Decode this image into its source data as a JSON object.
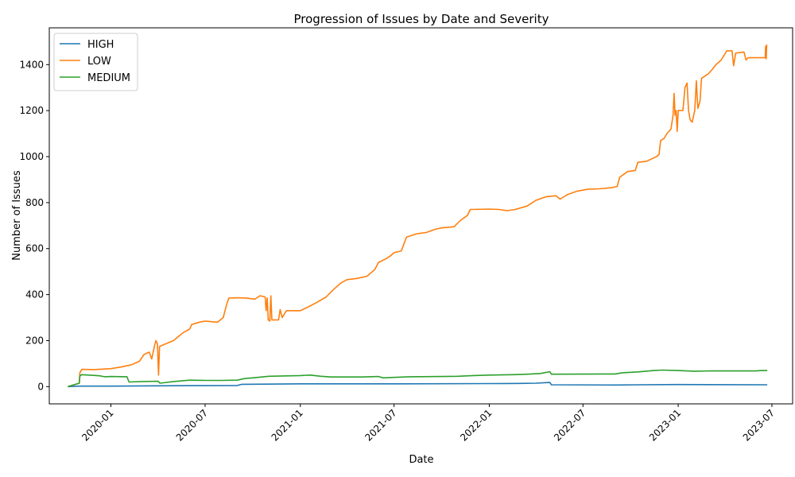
{
  "chart_data": {
    "type": "line",
    "title": "Progression of Issues by Date and Severity",
    "xlabel": "Date",
    "ylabel": "Number of Issues",
    "xlim": [
      "2019-09-04",
      "2023-08-10"
    ],
    "ylim": [
      -75,
      1560
    ],
    "x_ticks": [
      "2020-01-01",
      "2020-07-01",
      "2021-01-01",
      "2021-07-01",
      "2022-01-01",
      "2022-07-01",
      "2023-01-01",
      "2023-07-01"
    ],
    "x_tick_labels": [
      "2020-01",
      "2020-07",
      "2021-01",
      "2021-07",
      "2022-01",
      "2022-07",
      "2023-01",
      "2023-07"
    ],
    "y_ticks": [
      0,
      200,
      400,
      600,
      800,
      1000,
      1200,
      1400
    ],
    "y_tick_labels": [
      "0",
      "200",
      "400",
      "600",
      "800",
      "1000",
      "1200",
      "1400"
    ],
    "legend_position": "top-left",
    "grid": false,
    "series": [
      {
        "name": "HIGH",
        "color": "#1f77b4",
        "points": [
          [
            "2019-10-10",
            0
          ],
          [
            "2019-11-01",
            2
          ],
          [
            "2020-01-01",
            2
          ],
          [
            "2020-06-01",
            4
          ],
          [
            "2020-09-01",
            5
          ],
          [
            "2020-09-10",
            10
          ],
          [
            "2021-01-01",
            12
          ],
          [
            "2021-07-01",
            12
          ],
          [
            "2022-01-01",
            13
          ],
          [
            "2022-03-01",
            14
          ],
          [
            "2022-04-01",
            15
          ],
          [
            "2022-04-28",
            18
          ],
          [
            "2022-05-01",
            8
          ],
          [
            "2022-09-01",
            7
          ],
          [
            "2022-10-15",
            8
          ],
          [
            "2023-01-01",
            9
          ],
          [
            "2023-06-22",
            8
          ]
        ]
      },
      {
        "name": "LOW",
        "color": "#ff7f0e",
        "points": [
          [
            "2019-10-10",
            0
          ],
          [
            "2019-11-01",
            15
          ],
          [
            "2019-11-02",
            60
          ],
          [
            "2019-11-06",
            75
          ],
          [
            "2019-11-30",
            74
          ],
          [
            "2020-01-01",
            78
          ],
          [
            "2020-01-20",
            85
          ],
          [
            "2020-02-10",
            95
          ],
          [
            "2020-02-25",
            110
          ],
          [
            "2020-03-05",
            140
          ],
          [
            "2020-03-15",
            150
          ],
          [
            "2020-03-20",
            120
          ],
          [
            "2020-03-25",
            175
          ],
          [
            "2020-03-28",
            200
          ],
          [
            "2020-03-31",
            185
          ],
          [
            "2020-04-02",
            50
          ],
          [
            "2020-04-04",
            175
          ],
          [
            "2020-04-15",
            185
          ],
          [
            "2020-05-01",
            200
          ],
          [
            "2020-05-20",
            235
          ],
          [
            "2020-06-01",
            250
          ],
          [
            "2020-06-05",
            270
          ],
          [
            "2020-06-20",
            280
          ],
          [
            "2020-07-01",
            285
          ],
          [
            "2020-07-10",
            283
          ],
          [
            "2020-07-25",
            280
          ],
          [
            "2020-08-05",
            300
          ],
          [
            "2020-08-12",
            360
          ],
          [
            "2020-08-16",
            385
          ],
          [
            "2020-09-01",
            386
          ],
          [
            "2020-09-20",
            385
          ],
          [
            "2020-10-05",
            380
          ],
          [
            "2020-10-15",
            395
          ],
          [
            "2020-10-25",
            390
          ],
          [
            "2020-10-27",
            330
          ],
          [
            "2020-10-29",
            385
          ],
          [
            "2020-10-31",
            290
          ],
          [
            "2020-11-03",
            285
          ],
          [
            "2020-11-05",
            395
          ],
          [
            "2020-11-07",
            290
          ],
          [
            "2020-11-20",
            290
          ],
          [
            "2020-11-23",
            335
          ],
          [
            "2020-11-27",
            300
          ],
          [
            "2020-12-05",
            330
          ],
          [
            "2021-01-01",
            330
          ],
          [
            "2021-01-15",
            345
          ],
          [
            "2021-02-01",
            365
          ],
          [
            "2021-02-20",
            390
          ],
          [
            "2021-03-05",
            420
          ],
          [
            "2021-03-20",
            450
          ],
          [
            "2021-04-01",
            465
          ],
          [
            "2021-04-20",
            470
          ],
          [
            "2021-05-10",
            480
          ],
          [
            "2021-05-25",
            510
          ],
          [
            "2021-06-01",
            540
          ],
          [
            "2021-06-15",
            555
          ],
          [
            "2021-06-25",
            570
          ],
          [
            "2021-07-01",
            582
          ],
          [
            "2021-07-15",
            590
          ],
          [
            "2021-07-25",
            650
          ],
          [
            "2021-08-15",
            665
          ],
          [
            "2021-09-01",
            670
          ],
          [
            "2021-09-20",
            685
          ],
          [
            "2021-10-01",
            690
          ],
          [
            "2021-10-25",
            695
          ],
          [
            "2021-11-05",
            720
          ],
          [
            "2021-11-20",
            745
          ],
          [
            "2021-11-25",
            770
          ],
          [
            "2022-01-01",
            772
          ],
          [
            "2022-01-20",
            770
          ],
          [
            "2022-02-05",
            765
          ],
          [
            "2022-02-20",
            770
          ],
          [
            "2022-03-15",
            785
          ],
          [
            "2022-04-01",
            810
          ],
          [
            "2022-04-20",
            825
          ],
          [
            "2022-05-10",
            830
          ],
          [
            "2022-05-18",
            815
          ],
          [
            "2022-06-01",
            835
          ],
          [
            "2022-06-20",
            850
          ],
          [
            "2022-07-10",
            858
          ],
          [
            "2022-08-01",
            860
          ],
          [
            "2022-08-25",
            865
          ],
          [
            "2022-09-05",
            870
          ],
          [
            "2022-09-10",
            910
          ],
          [
            "2022-09-25",
            935
          ],
          [
            "2022-10-10",
            940
          ],
          [
            "2022-10-15",
            975
          ],
          [
            "2022-11-01",
            980
          ],
          [
            "2022-11-20",
            1000
          ],
          [
            "2022-11-25",
            1010
          ],
          [
            "2022-11-28",
            1070
          ],
          [
            "2022-12-05",
            1080
          ],
          [
            "2022-12-10",
            1100
          ],
          [
            "2022-12-18",
            1120
          ],
          [
            "2022-12-22",
            1180
          ],
          [
            "2022-12-24",
            1275
          ],
          [
            "2022-12-26",
            1180
          ],
          [
            "2022-12-28",
            1200
          ],
          [
            "2022-12-30",
            1110
          ],
          [
            "2023-01-01",
            1200
          ],
          [
            "2023-01-10",
            1200
          ],
          [
            "2023-01-14",
            1300
          ],
          [
            "2023-01-18",
            1320
          ],
          [
            "2023-01-21",
            1200
          ],
          [
            "2023-01-24",
            1160
          ],
          [
            "2023-01-28",
            1150
          ],
          [
            "2023-02-02",
            1200
          ],
          [
            "2023-02-05",
            1330
          ],
          [
            "2023-02-08",
            1210
          ],
          [
            "2023-02-12",
            1240
          ],
          [
            "2023-02-15",
            1340
          ],
          [
            "2023-02-28",
            1360
          ],
          [
            "2023-03-08",
            1380
          ],
          [
            "2023-03-15",
            1400
          ],
          [
            "2023-03-25",
            1420
          ],
          [
            "2023-04-05",
            1460
          ],
          [
            "2023-04-15",
            1460
          ],
          [
            "2023-04-18",
            1395
          ],
          [
            "2023-04-22",
            1450
          ],
          [
            "2023-05-08",
            1455
          ],
          [
            "2023-05-12",
            1420
          ],
          [
            "2023-05-16",
            1430
          ],
          [
            "2023-06-18",
            1430
          ],
          [
            "2023-06-19",
            1480
          ],
          [
            "2023-06-20",
            1425
          ],
          [
            "2023-06-21",
            1485
          ],
          [
            "2023-06-22",
            1485
          ]
        ]
      },
      {
        "name": "MEDIUM",
        "color": "#2ca02c",
        "points": [
          [
            "2019-10-10",
            0
          ],
          [
            "2019-10-25",
            10
          ],
          [
            "2019-11-01",
            15
          ],
          [
            "2019-11-02",
            45
          ],
          [
            "2019-11-05",
            52
          ],
          [
            "2019-11-20",
            50
          ],
          [
            "2019-12-10",
            47
          ],
          [
            "2019-12-20",
            43
          ],
          [
            "2020-01-01",
            44
          ],
          [
            "2020-02-01",
            43
          ],
          [
            "2020-02-05",
            20
          ],
          [
            "2020-03-01",
            22
          ],
          [
            "2020-04-01",
            23
          ],
          [
            "2020-04-05",
            15
          ],
          [
            "2020-05-01",
            22
          ],
          [
            "2020-06-01",
            28
          ],
          [
            "2020-07-01",
            27
          ],
          [
            "2020-08-01",
            27
          ],
          [
            "2020-09-01",
            28
          ],
          [
            "2020-09-15",
            35
          ],
          [
            "2020-10-01",
            38
          ],
          [
            "2020-11-01",
            45
          ],
          [
            "2021-01-01",
            48
          ],
          [
            "2021-01-20",
            50
          ],
          [
            "2021-02-10",
            45
          ],
          [
            "2021-03-01",
            42
          ],
          [
            "2021-05-01",
            42
          ],
          [
            "2021-06-01",
            44
          ],
          [
            "2021-06-10",
            38
          ],
          [
            "2021-07-01",
            40
          ],
          [
            "2021-08-01",
            43
          ],
          [
            "2021-10-01",
            44
          ],
          [
            "2021-11-01",
            45
          ],
          [
            "2021-12-01",
            48
          ],
          [
            "2022-01-01",
            50
          ],
          [
            "2022-02-15",
            52
          ],
          [
            "2022-03-15",
            54
          ],
          [
            "2022-04-10",
            57
          ],
          [
            "2022-04-28",
            65
          ],
          [
            "2022-05-01",
            54
          ],
          [
            "2022-09-01",
            55
          ],
          [
            "2022-09-15",
            60
          ],
          [
            "2022-10-15",
            64
          ],
          [
            "2022-11-15",
            70
          ],
          [
            "2022-12-01",
            72
          ],
          [
            "2023-01-01",
            70
          ],
          [
            "2023-02-01",
            67
          ],
          [
            "2023-03-01",
            68
          ],
          [
            "2023-06-01",
            68
          ],
          [
            "2023-06-10",
            70
          ],
          [
            "2023-06-22",
            70
          ]
        ]
      }
    ]
  }
}
